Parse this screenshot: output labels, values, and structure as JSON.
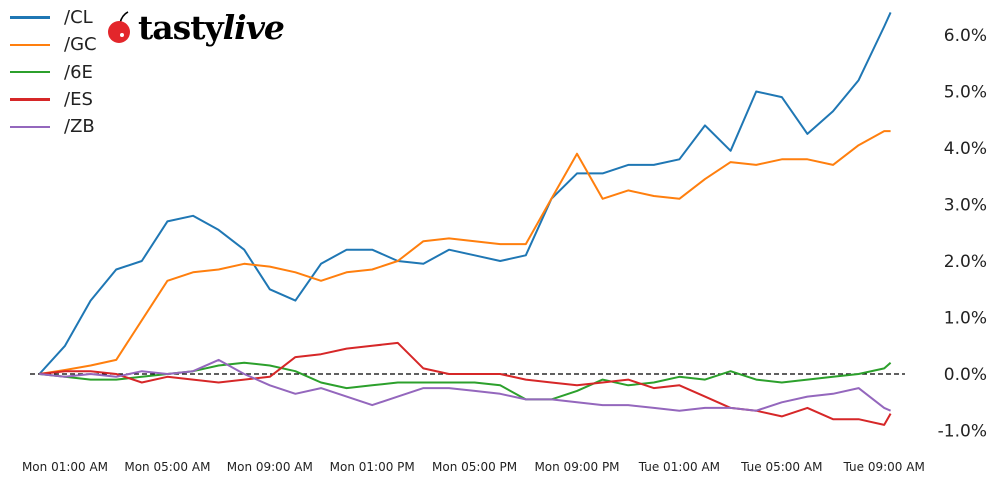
{
  "logo": {
    "brand_a": "tasty",
    "brand_b": "live"
  },
  "chart_data": {
    "type": "line",
    "title": "",
    "xlabel": "",
    "ylabel": "",
    "y_unit": "%",
    "ylim": [
      -1.25,
      6.6
    ],
    "grid": false,
    "legend": "top-left",
    "zero_line": {
      "value": 0,
      "style": "dashed",
      "color": "#000000"
    },
    "y_ticks": [
      {
        "value": -1,
        "label": "-1.0%"
      },
      {
        "value": 0,
        "label": "0.0%"
      },
      {
        "value": 1,
        "label": "1.0%"
      },
      {
        "value": 2,
        "label": "2.0%"
      },
      {
        "value": 3,
        "label": "3.0%"
      },
      {
        "value": 4,
        "label": "4.0%"
      },
      {
        "value": 5,
        "label": "5.0%"
      },
      {
        "value": 6,
        "label": "6.0%"
      }
    ],
    "x_ticks": [
      "Mon 01:00 AM",
      "Mon 05:00 AM",
      "Mon 09:00 AM",
      "Mon 01:00 PM",
      "Mon 05:00 PM",
      "Mon 09:00 PM",
      "Tue 01:00 AM",
      "Tue 05:00 AM",
      "Tue 09:00 AM"
    ],
    "x": [
      "Mon 12:00 AM",
      "Mon 01:00 AM",
      "Mon 02:00 AM",
      "Mon 03:00 AM",
      "Mon 04:00 AM",
      "Mon 05:00 AM",
      "Mon 06:00 AM",
      "Mon 07:00 AM",
      "Mon 08:00 AM",
      "Mon 09:00 AM",
      "Mon 10:00 AM",
      "Mon 11:00 AM",
      "Mon 12:00 PM",
      "Mon 01:00 PM",
      "Mon 02:00 PM",
      "Mon 03:00 PM",
      "Mon 04:00 PM",
      "Mon 05:00 PM",
      "Mon 06:00 PM",
      "Mon 07:00 PM",
      "Mon 08:00 PM",
      "Mon 09:00 PM",
      "Mon 10:00 PM",
      "Mon 11:00 PM",
      "Tue 12:00 AM",
      "Tue 01:00 AM",
      "Tue 02:00 AM",
      "Tue 03:00 AM",
      "Tue 04:00 AM",
      "Tue 05:00 AM",
      "Tue 06:00 AM",
      "Tue 07:00 AM",
      "Tue 08:00 AM",
      "Tue 09:00 AM",
      "Tue 09:15 AM"
    ],
    "series": [
      {
        "name": "/CL",
        "color": "#1f77b4",
        "values": [
          0,
          0.5,
          1.3,
          1.85,
          2.0,
          2.7,
          2.8,
          2.55,
          2.2,
          1.5,
          1.3,
          1.95,
          2.2,
          2.2,
          2.0,
          1.95,
          2.2,
          2.1,
          2.0,
          2.1,
          3.1,
          3.55,
          3.55,
          3.7,
          3.7,
          3.8,
          4.4,
          3.95,
          5.0,
          4.9,
          4.25,
          4.65,
          5.2,
          6.15,
          6.4
        ]
      },
      {
        "name": "/GC",
        "color": "#ff7f0e",
        "values": [
          0,
          0.07,
          0.15,
          0.25,
          0.95,
          1.65,
          1.8,
          1.85,
          1.95,
          1.9,
          1.8,
          1.65,
          1.8,
          1.85,
          2.0,
          2.35,
          2.4,
          2.35,
          2.3,
          2.3,
          3.1,
          3.9,
          3.1,
          3.25,
          3.15,
          3.1,
          3.45,
          3.75,
          3.7,
          3.8,
          3.8,
          3.7,
          4.05,
          4.3,
          4.3
        ]
      },
      {
        "name": "/6E",
        "color": "#2ca02c",
        "values": [
          0,
          -0.05,
          -0.1,
          -0.1,
          -0.05,
          0.0,
          0.05,
          0.15,
          0.2,
          0.15,
          0.05,
          -0.15,
          -0.25,
          -0.2,
          -0.15,
          -0.15,
          -0.15,
          -0.15,
          -0.2,
          -0.45,
          -0.45,
          -0.3,
          -0.1,
          -0.2,
          -0.15,
          -0.05,
          -0.1,
          0.05,
          -0.1,
          -0.15,
          -0.1,
          -0.05,
          0.0,
          0.1,
          0.2
        ]
      },
      {
        "name": "/ES",
        "color": "#d62728",
        "values": [
          0,
          0.05,
          0.05,
          0.0,
          -0.15,
          -0.05,
          -0.1,
          -0.15,
          -0.1,
          -0.05,
          0.3,
          0.35,
          0.45,
          0.5,
          0.55,
          0.1,
          0.0,
          0.0,
          0.0,
          -0.1,
          -0.15,
          -0.2,
          -0.15,
          -0.1,
          -0.25,
          -0.2,
          -0.4,
          -0.6,
          -0.65,
          -0.75,
          -0.6,
          -0.8,
          -0.8,
          -0.9,
          -0.7
        ]
      },
      {
        "name": "/ZB",
        "color": "#9467bd",
        "values": [
          0,
          -0.05,
          0.0,
          -0.05,
          0.05,
          0.0,
          0.05,
          0.25,
          0.0,
          -0.2,
          -0.35,
          -0.25,
          -0.4,
          -0.55,
          -0.4,
          -0.25,
          -0.25,
          -0.3,
          -0.35,
          -0.45,
          -0.45,
          -0.5,
          -0.55,
          -0.55,
          -0.6,
          -0.65,
          -0.6,
          -0.6,
          -0.65,
          -0.5,
          -0.4,
          -0.35,
          -0.25,
          -0.6,
          -0.65
        ]
      }
    ]
  }
}
